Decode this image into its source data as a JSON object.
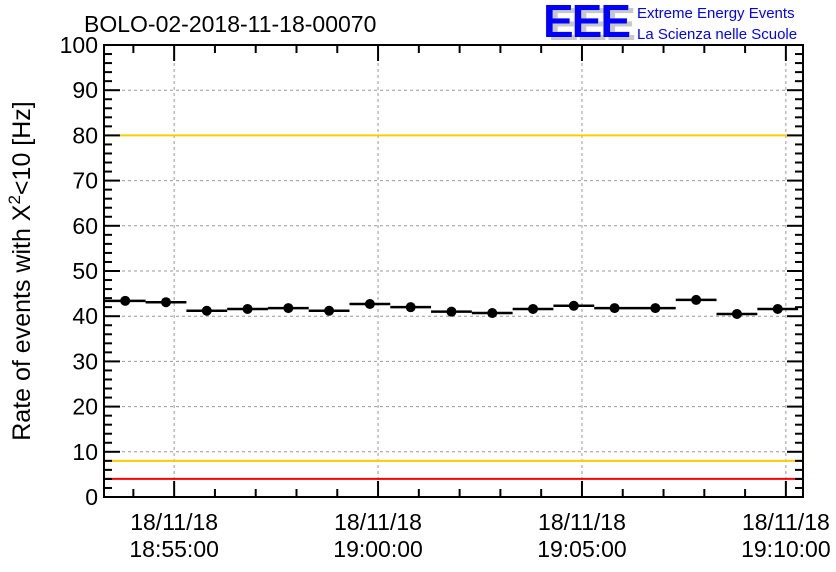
{
  "chart_data": {
    "type": "scatter",
    "title": "BOLO-02-2018-11-18-00070",
    "xlabel": "",
    "ylabel": "Rate of events with X²<10 [Hz]",
    "ylabel_parts": {
      "pre": "Rate of events with X",
      "sup": "2",
      "post": "<10 [Hz]"
    },
    "x_unit": "minutes after 18/11/18 18:55:00",
    "xlim": [
      -1.72,
      15.42
    ],
    "ylim": [
      0,
      100
    ],
    "grid": true,
    "bin_width_min": 1,
    "x": [
      -1.2,
      -0.2,
      0.8,
      1.8,
      2.8,
      3.8,
      4.8,
      5.8,
      6.8,
      7.8,
      8.8,
      9.8,
      10.8,
      11.8,
      12.8,
      13.8,
      14.8
    ],
    "values": [
      43.4,
      43.1,
      41.2,
      41.6,
      41.8,
      41.2,
      42.7,
      42.0,
      41.0,
      40.7,
      41.6,
      42.3,
      41.8,
      41.8,
      43.6,
      40.5,
      41.6
    ],
    "y_ticks": [
      "0",
      "10",
      "20",
      "30",
      "40",
      "50",
      "60",
      "70",
      "80",
      "90",
      "100"
    ],
    "x_ticks": [
      {
        "at": 0,
        "date": "18/11/18",
        "time": "18:55:00"
      },
      {
        "at": 5,
        "date": "18/11/18",
        "time": "19:00:00"
      },
      {
        "at": 10,
        "date": "18/11/18",
        "time": "19:05:00"
      },
      {
        "at": 15,
        "date": "18/11/18",
        "time": "19:10:00"
      }
    ],
    "reference_lines": [
      {
        "y": 100,
        "color": "#ff0000"
      },
      {
        "y": 80,
        "color": "#ffcc00"
      },
      {
        "y": 8,
        "color": "#ffcc00"
      },
      {
        "y": 4,
        "color": "#ff0000"
      }
    ]
  },
  "logo": {
    "letters": "EEE",
    "line1": "Extreme Energy Events",
    "line2": "La Scienza nelle Scuole",
    "color": "#0000ff"
  }
}
